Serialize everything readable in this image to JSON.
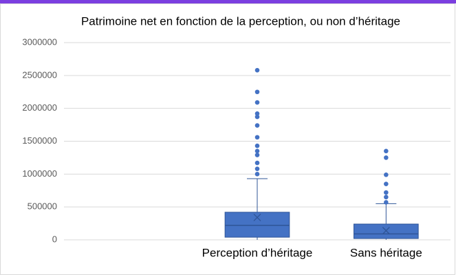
{
  "chart_data": {
    "type": "box",
    "title": "Patrimoine net en fonction de la perception, ou non d’héritage",
    "categories": [
      null,
      "Perception d’héritage",
      "Sans héritage"
    ],
    "color": "#4472c4",
    "boxes": [
      null,
      {
        "min": 0,
        "q1": 40000,
        "median": 220000,
        "q3": 420000,
        "max": 930000,
        "mean": 340000,
        "outliers": [
          2580000,
          2250000,
          2090000,
          1920000,
          1870000,
          1740000,
          1560000,
          1430000,
          1350000,
          1290000,
          1170000,
          1080000,
          1000000
        ]
      },
      {
        "min": 0,
        "q1": 20000,
        "median": 90000,
        "q3": 240000,
        "max": 550000,
        "mean": 140000,
        "outliers": [
          1350000,
          1250000,
          990000,
          850000,
          720000,
          650000,
          570000
        ]
      }
    ],
    "ylim": [
      0,
      3000000
    ],
    "yticks": [
      0,
      500000,
      1000000,
      1500000,
      2000000,
      2500000,
      3000000
    ],
    "grid": true
  }
}
